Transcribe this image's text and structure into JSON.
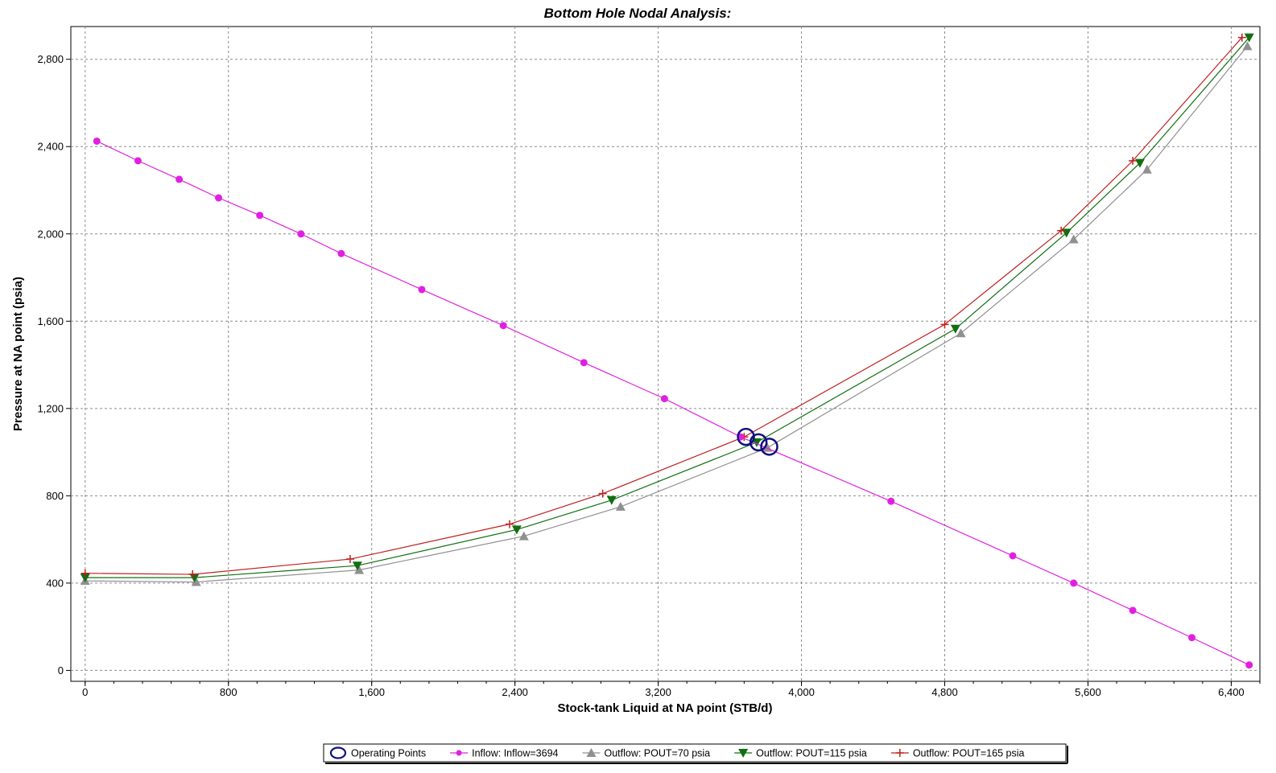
{
  "chart_data": {
    "type": "line",
    "title": "Bottom Hole Nodal Analysis:",
    "xlabel": "Stock-tank Liquid at NA point (STB/d)",
    "ylabel": "Pressure at NA point (psia)",
    "xlim": [
      -80,
      6560
    ],
    "ylim": [
      -50,
      2950
    ],
    "xticks": [
      0,
      800,
      1600,
      2400,
      3200,
      4000,
      4800,
      5600,
      6400
    ],
    "yticks": [
      0,
      400,
      800,
      1200,
      1600,
      2000,
      2400,
      2800
    ],
    "xtick_labels": [
      "0",
      "800",
      "1,600",
      "2,400",
      "3,200",
      "4,000",
      "4,800",
      "5,600",
      "6,400"
    ],
    "ytick_labels": [
      "0",
      "400",
      "800",
      "1,200",
      "1,600",
      "2,000",
      "2,400",
      "2,800"
    ],
    "grid": true,
    "legend_position": "bottom",
    "series": [
      {
        "name": "Inflow: Inflow=3694",
        "color": "#e020e0",
        "marker": "circle",
        "x": [
          65,
          295,
          525,
          745,
          975,
          1205,
          1430,
          1880,
          2335,
          2785,
          3235,
          3660,
          4500,
          5180,
          5520,
          5850,
          6180,
          6500
        ],
        "y": [
          2425,
          2335,
          2250,
          2165,
          2085,
          2000,
          1910,
          1745,
          1580,
          1410,
          1245,
          1070,
          775,
          525,
          400,
          275,
          150,
          25
        ]
      },
      {
        "name": "Outflow: POUT=70 psia",
        "color": "#909090",
        "marker": "triangle-up",
        "x": [
          0,
          620,
          1530,
          2450,
          2990,
          3810,
          4890,
          5520,
          5930,
          6490
        ],
        "y": [
          410,
          405,
          460,
          615,
          750,
          1020,
          1545,
          1975,
          2295,
          2860
        ]
      },
      {
        "name": "Outflow: POUT=115 psia",
        "color": "#107010",
        "marker": "triangle-down",
        "x": [
          0,
          610,
          1520,
          2410,
          2940,
          3750,
          4860,
          5480,
          5890,
          6500
        ],
        "y": [
          425,
          425,
          480,
          645,
          780,
          1045,
          1565,
          2005,
          2325,
          2900
        ]
      },
      {
        "name": "Outflow: POUT=165 psia",
        "color": "#c02020",
        "marker": "plus",
        "x": [
          0,
          600,
          1480,
          2370,
          2890,
          3680,
          4800,
          5450,
          5850,
          6460
        ],
        "y": [
          445,
          440,
          510,
          670,
          810,
          1070,
          1585,
          2015,
          2335,
          2900
        ]
      }
    ],
    "operating_points": {
      "name": "Operating Points",
      "color": "#101080",
      "x": [
        3690,
        3760,
        3820
      ],
      "y": [
        1070,
        1045,
        1025
      ]
    }
  }
}
